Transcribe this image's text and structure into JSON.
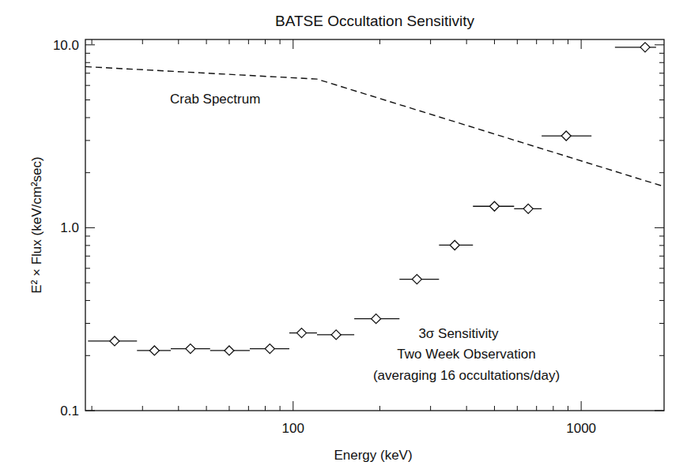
{
  "chart_data": {
    "type": "scatter",
    "title": "BATSE Occultation Sensitivity",
    "x_label": "Energy (keV)",
    "y_label": "E² × Flux (keV/cm²sec)",
    "log": true,
    "grid": false,
    "xlim": [
      19,
      1940
    ],
    "ylim": [
      0.1,
      10.7
    ],
    "xticks": [
      100,
      1000
    ],
    "yticks": [
      0.1,
      {
        "value": 1,
        "label": "1.0"
      },
      {
        "value": 10,
        "label": "10.0"
      }
    ],
    "annotations": [
      "Two Week Observation",
      "(averaging 16 occultations/day)"
    ],
    "series": [
      {
        "name": "Crab Spectrum",
        "type": "line",
        "line_style": "dashed",
        "color": "#111111",
        "x": [
          19,
          121,
          1940
        ],
        "values": [
          7.6,
          6.5,
          1.68
        ]
      },
      {
        "name": "3σ Sensitivity",
        "type": "scatter",
        "marker": "diamond",
        "color": "#111111",
        "x": [
          24,
          33,
          44,
          60,
          83,
          107,
          141,
          194,
          269,
          364,
          500,
          655,
          887,
          1667
        ],
        "values": [
          0.24,
          0.213,
          0.218,
          0.213,
          0.218,
          0.266,
          0.26,
          0.318,
          0.523,
          0.803,
          1.31,
          1.27,
          3.18,
          9.7
        ],
        "x_min": [
          19.4,
          28.7,
          37.6,
          51.5,
          70.7,
          97,
          121,
          163,
          234,
          321,
          421,
          585,
          729,
          1310
        ],
        "x_max": [
          28.7,
          37.6,
          51.5,
          70.7,
          97,
          121,
          163,
          234,
          321,
          421,
          585,
          729,
          1086,
          1820
        ]
      }
    ]
  }
}
